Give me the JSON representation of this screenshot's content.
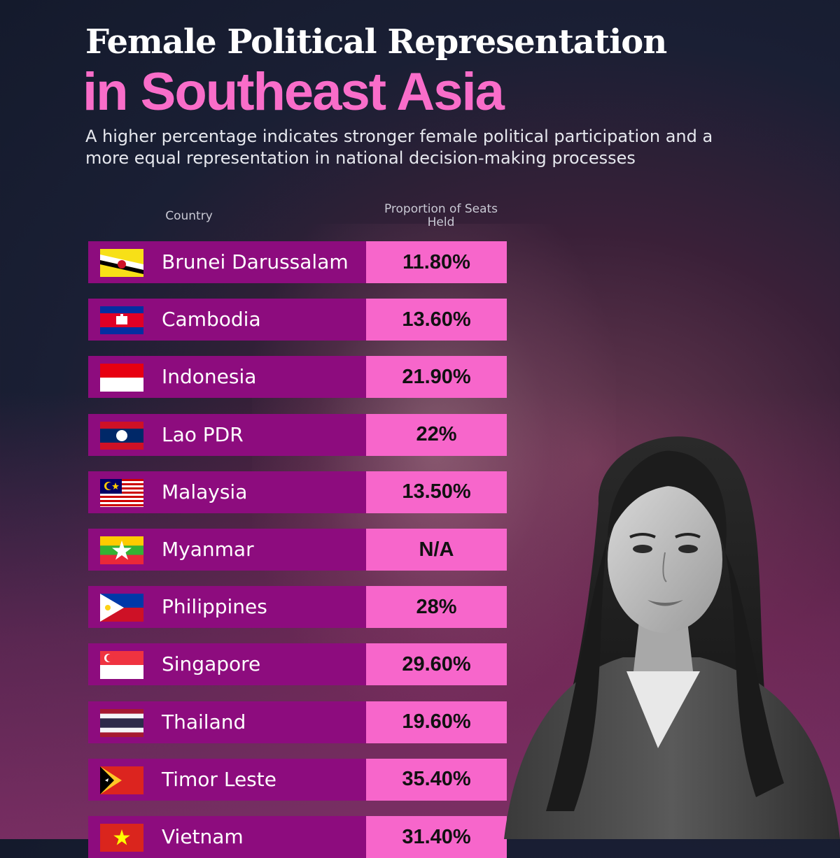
{
  "title": {
    "line1": "Female Political Representation",
    "line2": "in Southeast Asia"
  },
  "subtitle": "A higher percentage indicates stronger female political participation and a more equal representation in national decision-making processes",
  "chart_data": {
    "type": "table",
    "columns": [
      "Country",
      "Proportion of Seats Held"
    ],
    "rows": [
      {
        "country": "Brunei Darussalam",
        "value": "11.80%",
        "flag": "brunei-flag-icon"
      },
      {
        "country": "Cambodia",
        "value": "13.60%",
        "flag": "cambodia-flag-icon"
      },
      {
        "country": "Indonesia",
        "value": "21.90%",
        "flag": "indonesia-flag-icon"
      },
      {
        "country": "Lao PDR",
        "value": "22%",
        "flag": "laos-flag-icon"
      },
      {
        "country": "Malaysia",
        "value": "13.50%",
        "flag": "malaysia-flag-icon"
      },
      {
        "country": "Myanmar",
        "value": "N/A",
        "flag": "myanmar-flag-icon"
      },
      {
        "country": "Philippines",
        "value": "28%",
        "flag": "philippines-flag-icon"
      },
      {
        "country": "Singapore",
        "value": "29.60%",
        "flag": "singapore-flag-icon"
      },
      {
        "country": "Thailand",
        "value": "19.60%",
        "flag": "thailand-flag-icon"
      },
      {
        "country": "Timor Leste",
        "value": "35.40%",
        "flag": "timor-leste-flag-icon"
      },
      {
        "country": "Vietnam",
        "value": "31.40%",
        "flag": "vietnam-flag-icon"
      }
    ]
  },
  "colors": {
    "name_cell": "#8d0c7e",
    "value_cell": "#f766cb",
    "title_accent": "#f96dc9"
  }
}
